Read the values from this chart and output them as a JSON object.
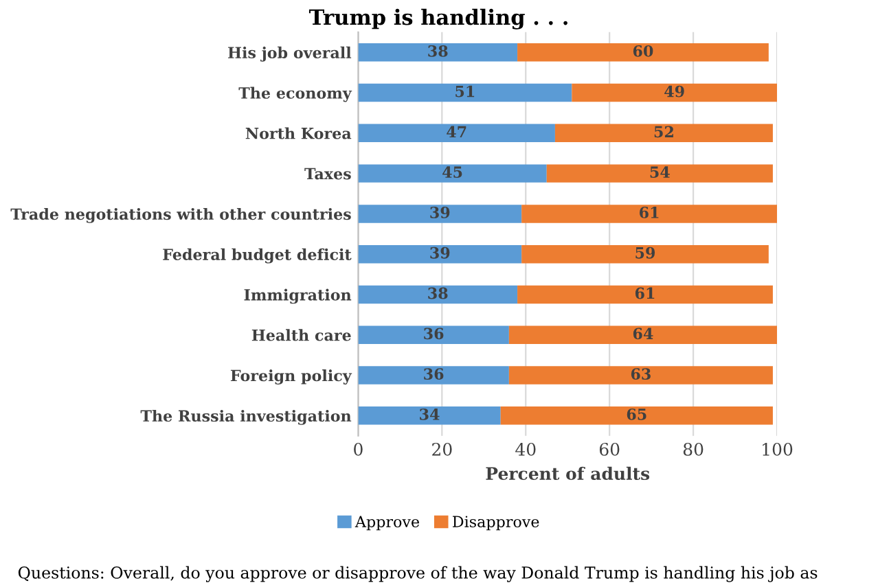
{
  "chart_data": {
    "type": "bar",
    "orientation": "horizontal",
    "stacked": true,
    "title": "Trump is handling . . .",
    "xlabel": "Percent of adults",
    "categories": [
      "His job overall",
      "The economy",
      "North Korea",
      "Taxes",
      "Trade negotiations with other countries",
      "Federal budget deficit",
      "Immigration",
      "Health care",
      "Foreign policy",
      "The Russia investigation"
    ],
    "series": [
      {
        "name": "Approve",
        "color": "#5b9bd5",
        "values": [
          38,
          51,
          47,
          45,
          39,
          39,
          38,
          36,
          36,
          34
        ]
      },
      {
        "name": "Disapprove",
        "color": "#ed7d31",
        "values": [
          60,
          49,
          52,
          54,
          61,
          59,
          61,
          64,
          63,
          65
        ]
      }
    ],
    "xlim": [
      0,
      100
    ],
    "xticks": [
      0,
      20,
      40,
      60,
      80,
      100
    ],
    "grid": "x",
    "legend": "bottom",
    "data_labels": true,
    "annotations": [
      "Questions: Overall, do you approve or disapprove of the way Donald Trump is handling his job as"
    ]
  }
}
